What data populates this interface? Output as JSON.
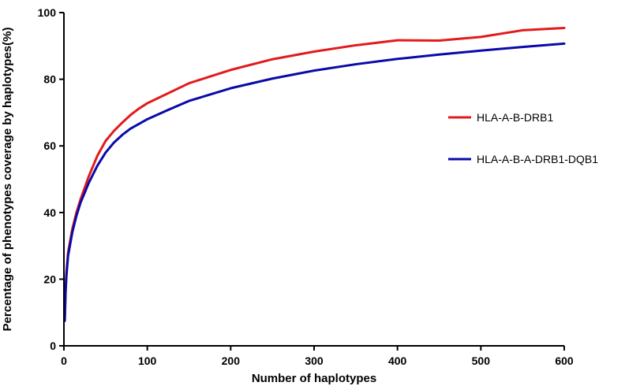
{
  "chart_data": {
    "type": "line",
    "xlabel": "Number of haplotypes",
    "ylabel": "Percentage of phenotypes coverage by haplotypes(%)",
    "xlim": [
      0,
      600
    ],
    "ylim": [
      0,
      100
    ],
    "xticks": [
      0,
      100,
      200,
      300,
      400,
      500,
      600
    ],
    "yticks": [
      0,
      20,
      40,
      60,
      80,
      100
    ],
    "grid": false,
    "legend_position": "right",
    "series": [
      {
        "name": "HLA-A-B-DRB1",
        "color": "#e31a1c",
        "x": [
          1,
          2,
          3,
          5,
          10,
          15,
          20,
          30,
          40,
          50,
          60,
          70,
          80,
          90,
          100,
          125,
          150,
          175,
          200,
          250,
          300,
          350,
          400,
          450,
          500,
          550,
          600
        ],
        "y": [
          8,
          17,
          22,
          28,
          35,
          40,
          44,
          51,
          57,
          61.5,
          64.5,
          67,
          69.3,
          71.2,
          72.8,
          75.8,
          78.8,
          80.8,
          82.8,
          86,
          88.3,
          90.2,
          91.7,
          91.6,
          92.7,
          94.7,
          95.4
        ]
      },
      {
        "name": "HLA-A-B-A-DRB1-DQB1",
        "color": "#0a0aa8",
        "x": [
          1,
          2,
          3,
          5,
          10,
          15,
          20,
          30,
          40,
          50,
          60,
          70,
          80,
          90,
          100,
          125,
          150,
          175,
          200,
          250,
          300,
          350,
          400,
          450,
          500,
          550,
          600
        ],
        "y": [
          7.5,
          16,
          21,
          27,
          34,
          39,
          43,
          49,
          54,
          58,
          61,
          63.3,
          65.2,
          66.6,
          68,
          70.8,
          73.5,
          75.4,
          77.3,
          80.2,
          82.6,
          84.5,
          86.1,
          87.4,
          88.6,
          89.7,
          90.7
        ]
      }
    ]
  }
}
